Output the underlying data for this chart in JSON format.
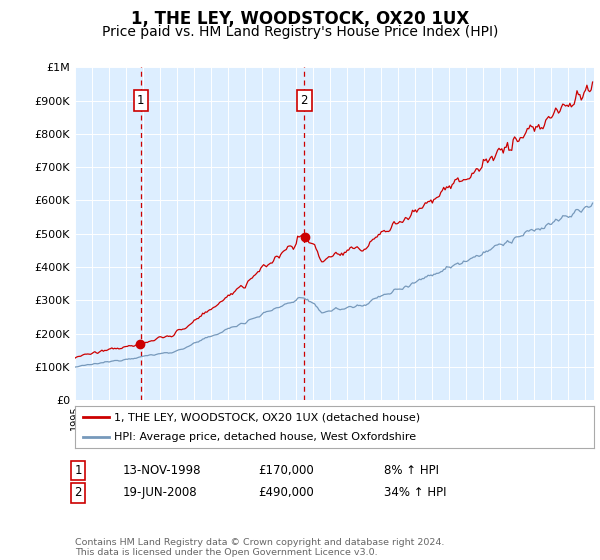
{
  "title": "1, THE LEY, WOODSTOCK, OX20 1UX",
  "subtitle": "Price paid vs. HM Land Registry's House Price Index (HPI)",
  "title_fontsize": 12,
  "subtitle_fontsize": 10,
  "background_color": "#ffffff",
  "plot_bg_color": "#ddeeff",
  "grid_color": "#ffffff",
  "line1_color": "#cc0000",
  "line2_color": "#7799bb",
  "marker_color": "#cc0000",
  "sale1_year": 1998.87,
  "sale1_price": 170000,
  "sale1_label": "1",
  "sale1_date": "13-NOV-1998",
  "sale1_hpi": "8% ↑ HPI",
  "sale2_year": 2008.47,
  "sale2_price": 490000,
  "sale2_label": "2",
  "sale2_date": "19-JUN-2008",
  "sale2_hpi": "34% ↑ HPI",
  "xmin": 1995,
  "xmax": 2025.5,
  "ymin": 0,
  "ymax": 1000000,
  "yticks": [
    0,
    100000,
    200000,
    300000,
    400000,
    500000,
    600000,
    700000,
    800000,
    900000,
    1000000
  ],
  "ytick_labels": [
    "£0",
    "£100K",
    "£200K",
    "£300K",
    "£400K",
    "£500K",
    "£600K",
    "£700K",
    "£800K",
    "£900K",
    "£1M"
  ],
  "legend_line1": "1, THE LEY, WOODSTOCK, OX20 1UX (detached house)",
  "legend_line2": "HPI: Average price, detached house, West Oxfordshire",
  "footer": "Contains HM Land Registry data © Crown copyright and database right 2024.\nThis data is licensed under the Open Government Licence v3.0."
}
